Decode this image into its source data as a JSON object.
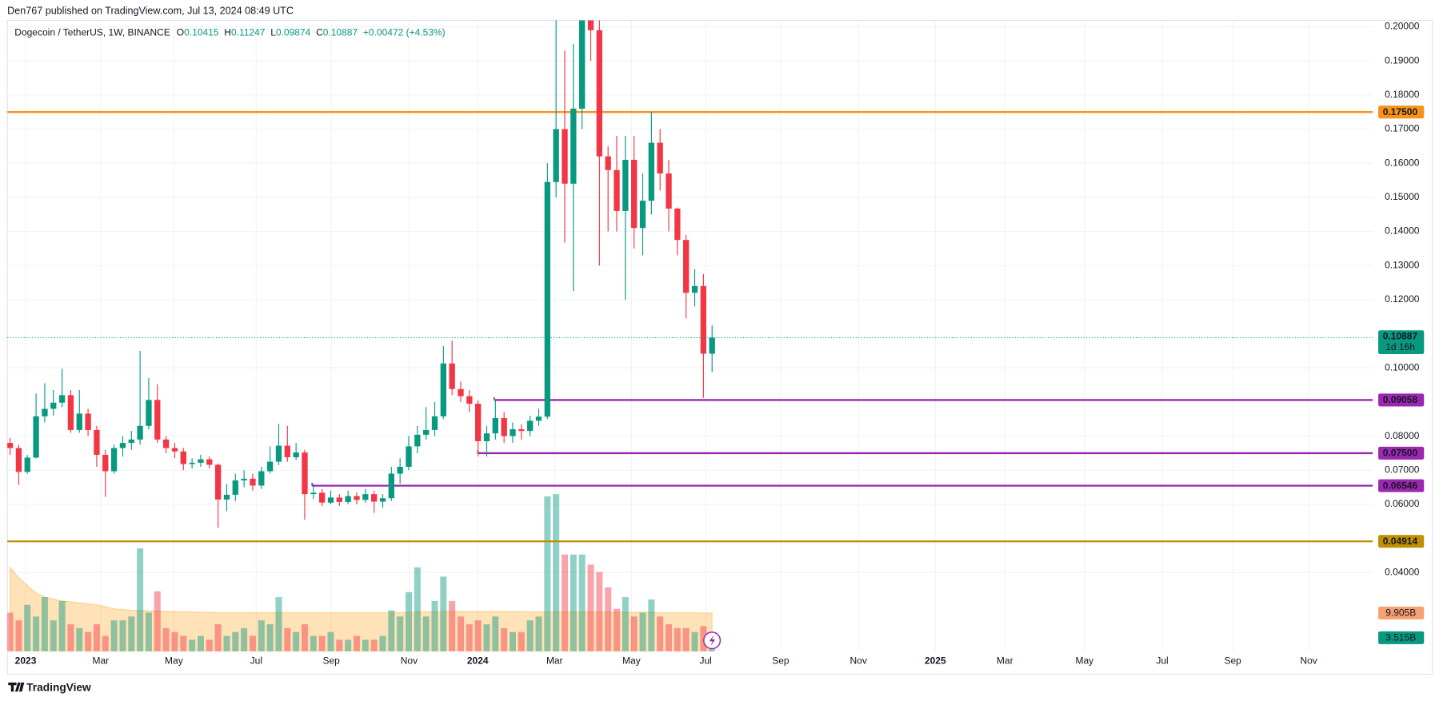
{
  "chart_data": {
    "type": "candlestick",
    "publisher_line": "Den767 published on TradingView.com, Jul 13, 2024 08:49 UTC",
    "symbol": "Dogecoin / TetherUS, 1W, BINANCE",
    "legend_keys": [
      "O",
      "H",
      "L",
      "C"
    ],
    "change": {
      "value": 0.00472,
      "label": "+0.00472"
    },
    "change_pct": {
      "value": 4.53,
      "label": "(+4.53%)"
    },
    "colors": {
      "up": "#089981",
      "down": "#f23645",
      "up_volume": "rgba(8,153,129,0.45)",
      "down_volume": "rgba(242,54,69,0.45)",
      "volume_ma": "rgba(255,152,0,0.28)"
    },
    "open": [
      0.078,
      0.0765,
      0.0695,
      0.0737,
      0.0858,
      0.088,
      0.0898,
      0.092,
      0.0818,
      0.0866,
      0.0818,
      0.0745,
      0.0697,
      0.0765,
      0.078,
      0.079,
      0.083,
      0.0906,
      0.079,
      0.0765,
      0.0755,
      0.0718,
      0.0722,
      0.0732,
      0.0716,
      0.0614,
      0.0628,
      0.067,
      0.0675,
      0.0655,
      0.0697,
      0.0725,
      0.0772,
      0.0738,
      0.0752,
      0.063,
      0.0634,
      0.0605,
      0.062,
      0.0607,
      0.0624,
      0.0613,
      0.063,
      0.0608,
      0.0618,
      0.069,
      0.071,
      0.077,
      0.0804,
      0.0818,
      0.0858,
      0.1013,
      0.0938,
      0.0917,
      0.0895,
      0.0785,
      0.0808,
      0.0853,
      0.08,
      0.082,
      0.0815,
      0.0845,
      0.0857,
      0.1545,
      0.17,
      0.154,
      0.176,
      0.2035,
      0.199,
      0.162,
      0.158,
      0.146,
      0.161,
      0.141,
      0.149,
      0.166,
      0.157,
      0.1467,
      0.1375,
      0.122,
      0.124,
      0.10415
    ],
    "high": [
      0.0795,
      0.0775,
      0.0745,
      0.0925,
      0.0955,
      0.0935,
      0.0997,
      0.0935,
      0.0935,
      0.088,
      0.083,
      0.076,
      0.0775,
      0.08,
      0.0815,
      0.105,
      0.097,
      0.0952,
      0.08,
      0.078,
      0.0765,
      0.0735,
      0.0745,
      0.074,
      0.072,
      0.066,
      0.069,
      0.07,
      0.069,
      0.071,
      0.077,
      0.0836,
      0.083,
      0.078,
      0.076,
      0.066,
      0.0645,
      0.064,
      0.063,
      0.064,
      0.0635,
      0.0645,
      0.064,
      0.063,
      0.071,
      0.0735,
      0.08,
      0.083,
      0.0885,
      0.09,
      0.1064,
      0.108,
      0.096,
      0.0935,
      0.0905,
      0.083,
      0.0906,
      0.087,
      0.084,
      0.0835,
      0.086,
      0.088,
      0.16,
      0.205,
      0.193,
      0.195,
      0.228,
      0.215,
      0.202,
      0.165,
      0.168,
      0.168,
      0.168,
      0.157,
      0.175,
      0.17,
      0.161,
      0.147,
      0.139,
      0.129,
      0.1275,
      0.11247
    ],
    "low": [
      0.0745,
      0.0657,
      0.069,
      0.0735,
      0.084,
      0.086,
      0.0885,
      0.081,
      0.081,
      0.08,
      0.071,
      0.0622,
      0.069,
      0.074,
      0.076,
      0.0775,
      0.082,
      0.078,
      0.075,
      0.0735,
      0.07,
      0.0705,
      0.071,
      0.0705,
      0.0531,
      0.058,
      0.061,
      0.065,
      0.064,
      0.0645,
      0.069,
      0.0715,
      0.0725,
      0.073,
      0.0555,
      0.0615,
      0.0595,
      0.06,
      0.0595,
      0.06,
      0.06,
      0.0605,
      0.0575,
      0.059,
      0.061,
      0.066,
      0.07,
      0.075,
      0.079,
      0.08,
      0.085,
      0.092,
      0.09,
      0.087,
      0.074,
      0.074,
      0.079,
      0.078,
      0.078,
      0.079,
      0.08,
      0.083,
      0.085,
      0.15,
      0.1367,
      0.1225,
      0.17,
      0.19,
      0.13,
      0.14,
      0.14,
      0.12,
      0.135,
      0.133,
      0.145,
      0.152,
      0.14,
      0.133,
      0.1145,
      0.118,
      0.0912,
      0.09874
    ],
    "close": [
      0.0765,
      0.0695,
      0.0737,
      0.0858,
      0.088,
      0.0898,
      0.092,
      0.0818,
      0.0866,
      0.0818,
      0.0745,
      0.0697,
      0.0765,
      0.078,
      0.079,
      0.083,
      0.0906,
      0.079,
      0.0765,
      0.0755,
      0.0718,
      0.0722,
      0.0732,
      0.0716,
      0.0614,
      0.0628,
      0.067,
      0.0675,
      0.0655,
      0.0697,
      0.0725,
      0.0772,
      0.0738,
      0.0752,
      0.063,
      0.0634,
      0.0605,
      0.062,
      0.0607,
      0.0624,
      0.0613,
      0.063,
      0.0608,
      0.0618,
      0.069,
      0.071,
      0.077,
      0.0804,
      0.0818,
      0.0858,
      0.1013,
      0.0938,
      0.0917,
      0.0895,
      0.0785,
      0.0808,
      0.0853,
      0.08,
      0.082,
      0.0815,
      0.0845,
      0.0857,
      0.1545,
      0.17,
      0.154,
      0.176,
      0.2035,
      0.199,
      0.162,
      0.158,
      0.146,
      0.161,
      0.141,
      0.149,
      0.166,
      0.157,
      0.1467,
      0.1375,
      0.122,
      0.124,
      0.10415,
      0.10887
    ],
    "volume": [
      10,
      8,
      12,
      9,
      14,
      8,
      13,
      7,
      6,
      5,
      7,
      4,
      8,
      8,
      9,
      26.6,
      10,
      15.5,
      6,
      5,
      4,
      3,
      4,
      3,
      7,
      4,
      5,
      6,
      4,
      8,
      7,
      14,
      6,
      5,
      7,
      4,
      4,
      5,
      3,
      3,
      4,
      3,
      3,
      4,
      10.6,
      9,
      15.3,
      21.7,
      9,
      13,
      19.3,
      13,
      9,
      7,
      8,
      7,
      9,
      6,
      5,
      5,
      8,
      9,
      40,
      40.6,
      25,
      25,
      25,
      22.4,
      20.5,
      16.5,
      11,
      14,
      9,
      10,
      13.4,
      9,
      7,
      6,
      6,
      5,
      6.5,
      3.515
    ],
    "volume_ma": [
      21.7,
      19,
      17,
      15,
      14,
      13.5,
      13,
      12.8,
      12.5,
      12.3,
      12,
      11.5,
      11,
      10.8,
      10.6,
      10.5,
      10.5,
      10.4,
      10.3,
      10.3,
      10.2,
      10.2,
      10.1,
      10.1,
      10,
      10,
      10,
      10,
      10,
      10,
      10,
      10,
      10,
      10,
      10,
      10,
      10,
      10,
      10,
      10,
      10,
      10,
      10,
      10,
      10,
      10,
      10.1,
      10.2,
      10.2,
      10.2,
      10.3,
      10.3,
      10.3,
      10.3,
      10.3,
      10.3,
      10.3,
      10.3,
      10.3,
      10.3,
      10.2,
      10.2,
      10.2,
      10.2,
      10.2,
      10.2,
      10.2,
      10.2,
      10.2,
      10.2,
      10.1,
      10.1,
      10.1,
      10.1,
      10.1,
      10,
      10,
      10,
      10,
      9.95,
      9.92,
      9.905
    ],
    "volume_value_labels": {
      "ma": "9.905B",
      "last": "3.515B"
    },
    "countdown": "1d 16h",
    "ylim": [
      0.01689,
      0.20188
    ],
    "yticks": [
      {
        "value": 0.04,
        "label": "0.04000"
      },
      {
        "value": 0.06,
        "label": "0.06000"
      },
      {
        "value": 0.07,
        "label": "0.07000"
      },
      {
        "value": 0.08,
        "label": "0.08000"
      },
      {
        "value": 0.1,
        "label": "0.10000"
      },
      {
        "value": 0.12,
        "label": "0.12000"
      },
      {
        "value": 0.13,
        "label": "0.13000"
      },
      {
        "value": 0.14,
        "label": "0.14000"
      },
      {
        "value": 0.15,
        "label": "0.15000"
      },
      {
        "value": 0.16,
        "label": "0.16000"
      },
      {
        "value": 0.17,
        "label": "0.17000"
      },
      {
        "value": 0.18,
        "label": "0.18000"
      },
      {
        "value": 0.19,
        "label": "0.19000"
      },
      {
        "value": 0.2,
        "label": "0.20000"
      }
    ],
    "levels": [
      {
        "value": 0.175,
        "label": "0.17500",
        "color": "#f7931a",
        "text_color": "#131722"
      },
      {
        "value": 0.09058,
        "label": "0.09058",
        "color": "#9c27b0",
        "text_color": "#ffffff"
      },
      {
        "value": 0.075,
        "label": "0.07500",
        "color": "#9c27b0",
        "text_color": "#ffffff"
      },
      {
        "value": 0.06546,
        "label": "0.06546",
        "color": "#9c27b0",
        "text_color": "#ffffff"
      },
      {
        "value": 0.04914,
        "label": "0.04914",
        "color": "#bf9000",
        "text_color": "#131722"
      }
    ],
    "time_labels": [
      "2023",
      "Mar",
      "May",
      "Jul",
      "Sep",
      "Nov",
      "2024",
      "Mar",
      "May",
      "Jul",
      "Sep",
      "Nov",
      "2025",
      "Mar",
      "May",
      "Jul",
      "Sep",
      "Nov"
    ],
    "grid": true,
    "brand": "TradingView"
  }
}
